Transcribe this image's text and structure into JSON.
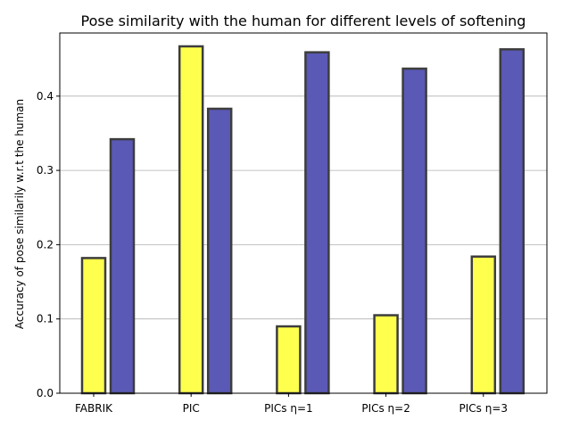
{
  "chart_data": {
    "type": "bar",
    "title": "Pose similarity with the human for different levels of softening",
    "xlabel": "",
    "ylabel": "Accuracy of pose similarily w.r.t the human",
    "categories": [
      "FABRIK",
      "PIC",
      "PICs η=1",
      "PICs η=2",
      "PICs η=3"
    ],
    "series": [
      {
        "color": "#ffff4d",
        "values": [
          0.182,
          0.467,
          0.09,
          0.105,
          0.184
        ]
      },
      {
        "color": "#5a59b6",
        "values": [
          0.342,
          0.383,
          0.459,
          0.437,
          0.463
        ]
      }
    ],
    "ylim": [
      0,
      0.485
    ],
    "yticks": [
      0.0,
      0.1,
      0.2,
      0.3,
      0.4
    ],
    "ytick_labels": [
      "0.0",
      "0.1",
      "0.2",
      "0.3",
      "0.4"
    ],
    "grid": "horizontal",
    "edge_color": "#3d3d3d"
  }
}
